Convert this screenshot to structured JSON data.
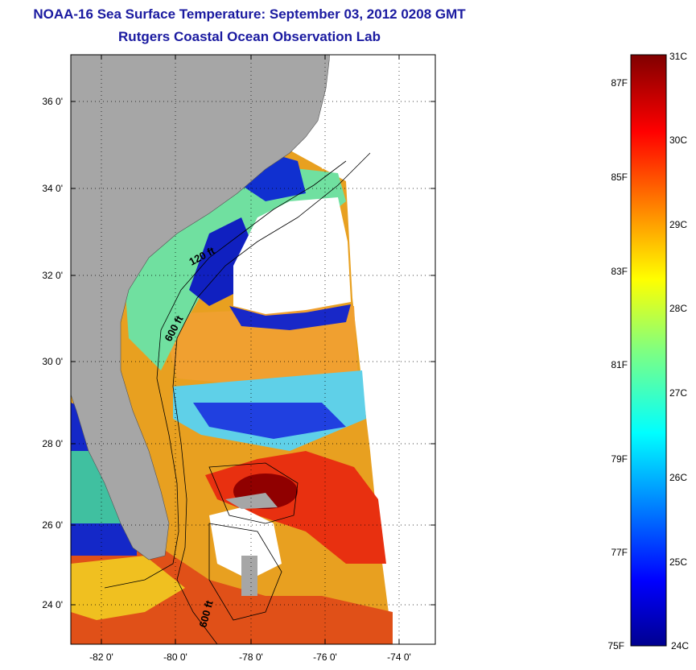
{
  "title": "NOAA-16 Sea Surface Temperature:  September 03, 2012 0208 GMT",
  "subtitle": "Rutgers Coastal Ocean Observation Lab",
  "axes": {
    "x_ticks": [
      "-82 0'",
      "-80 0'",
      "-78 0'",
      "-76 0'",
      "-74 0'"
    ],
    "y_ticks": [
      "36 0'",
      "34 0'",
      "32 0'",
      "30 0'",
      "28 0'",
      "26 0'",
      "24 0'"
    ]
  },
  "contours": {
    "label_120": "120 ft",
    "label_600": "600 ft",
    "label_600b": "600 ft"
  },
  "colorbar": {
    "celsius": [
      "31C",
      "30C",
      "29C",
      "28C",
      "27C",
      "26C",
      "25C",
      "24C"
    ],
    "fahrenheit": [
      "87F",
      "85F",
      "83F",
      "81F",
      "79F",
      "77F",
      "75F"
    ]
  },
  "colors": {
    "land": "#a6a6a6",
    "title": "#1a1aa0"
  }
}
